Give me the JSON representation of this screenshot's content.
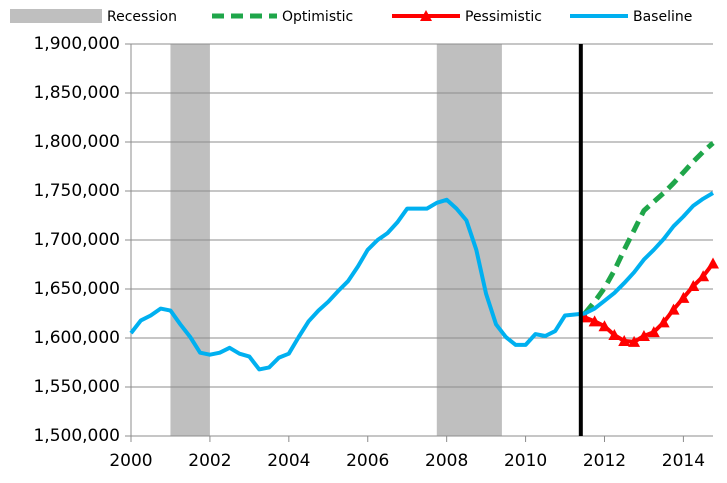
{
  "chart_data": {
    "type": "line",
    "x": [
      2000,
      2000.25,
      2000.5,
      2000.75,
      2001,
      2001.25,
      2001.5,
      2001.75,
      2002,
      2002.25,
      2002.5,
      2002.75,
      2003,
      2003.25,
      2003.5,
      2003.75,
      2004,
      2004.25,
      2004.5,
      2004.75,
      2005,
      2005.25,
      2005.5,
      2005.75,
      2006,
      2006.25,
      2006.5,
      2006.75,
      2007,
      2007.25,
      2007.5,
      2007.75,
      2008,
      2008.25,
      2008.5,
      2008.75,
      2009,
      2009.25,
      2009.5,
      2009.75,
      2010,
      2010.25,
      2010.5,
      2010.75,
      2011,
      2011.25,
      2011.5,
      2011.75,
      2012,
      2012.25,
      2012.5,
      2012.75,
      2013,
      2013.25,
      2013.5,
      2013.75,
      2014,
      2014.25,
      2014.5,
      2014.75
    ],
    "series": [
      {
        "name": "Optimistic",
        "color": "#1fa64a",
        "dash": true,
        "marker": false,
        "values": [
          null,
          null,
          null,
          null,
          null,
          null,
          null,
          null,
          null,
          null,
          null,
          null,
          null,
          null,
          null,
          null,
          null,
          null,
          null,
          null,
          null,
          null,
          null,
          null,
          null,
          null,
          null,
          null,
          null,
          null,
          null,
          null,
          null,
          null,
          null,
          null,
          null,
          null,
          null,
          null,
          null,
          null,
          null,
          null,
          null,
          null,
          1625000,
          1637000,
          1651000,
          1669000,
          1690000,
          1710000,
          1730000,
          1739000,
          1748000,
          1758000,
          1769000,
          1780000,
          1790000,
          1799000
        ]
      },
      {
        "name": "Pessimistic",
        "color": "#ff0000",
        "dash": false,
        "marker": true,
        "values": [
          null,
          null,
          null,
          null,
          null,
          null,
          null,
          null,
          null,
          null,
          null,
          null,
          null,
          null,
          null,
          null,
          null,
          null,
          null,
          null,
          null,
          null,
          null,
          null,
          null,
          null,
          null,
          null,
          null,
          null,
          null,
          null,
          null,
          null,
          null,
          null,
          null,
          null,
          null,
          null,
          null,
          null,
          null,
          null,
          null,
          null,
          1621000,
          1617000,
          1612000,
          1603000,
          1597000,
          1596000,
          1602000,
          1606000,
          1616000,
          1629000,
          1641000,
          1653000,
          1663000,
          1676000
        ]
      },
      {
        "name": "Baseline",
        "color": "#00b0f0",
        "dash": false,
        "marker": false,
        "values": [
          1605000,
          1618000,
          1623000,
          1630000,
          1628000,
          1614000,
          1601000,
          1585000,
          1583000,
          1585000,
          1590000,
          1584000,
          1581000,
          1568000,
          1570000,
          1580000,
          1584000,
          1601000,
          1617000,
          1628000,
          1637000,
          1648000,
          1658000,
          1673000,
          1690000,
          1700000,
          1707000,
          1718000,
          1732000,
          1732000,
          1732000,
          1738000,
          1741000,
          1732000,
          1720000,
          1690000,
          1645000,
          1614000,
          1601000,
          1593000,
          1593000,
          1604000,
          1602000,
          1607000,
          1623000,
          1624000,
          1625000,
          1630000,
          1638000,
          1646000,
          1656000,
          1667000,
          1680000,
          1690000,
          1701000,
          1714000,
          1724000,
          1735000,
          1742000,
          1748000
        ]
      }
    ],
    "recessions": {
      "name": "Recession",
      "color": "#bfbfbf",
      "ranges": [
        [
          2001,
          2002
        ],
        [
          2007.75,
          2009.4
        ]
      ]
    },
    "forecast_start": 2011.4,
    "xlim": [
      2000,
      2014.75
    ],
    "xticks": [
      2000,
      2002,
      2004,
      2006,
      2008,
      2010,
      2012,
      2014
    ],
    "ylim": [
      1500000,
      1900000
    ],
    "yticks": [
      {
        "value": 1500000,
        "label": "1,500,000"
      },
      {
        "value": 1550000,
        "label": "1,550,000"
      },
      {
        "value": 1600000,
        "label": "1,600,000"
      },
      {
        "value": 1650000,
        "label": "1,650,000"
      },
      {
        "value": 1700000,
        "label": "1,700,000"
      },
      {
        "value": 1750000,
        "label": "1,750,000"
      },
      {
        "value": 1800000,
        "label": "1,800,000"
      },
      {
        "value": 1850000,
        "label": "1,850,000"
      },
      {
        "value": 1900000,
        "label": "1,900,000"
      }
    ],
    "grid": true
  }
}
